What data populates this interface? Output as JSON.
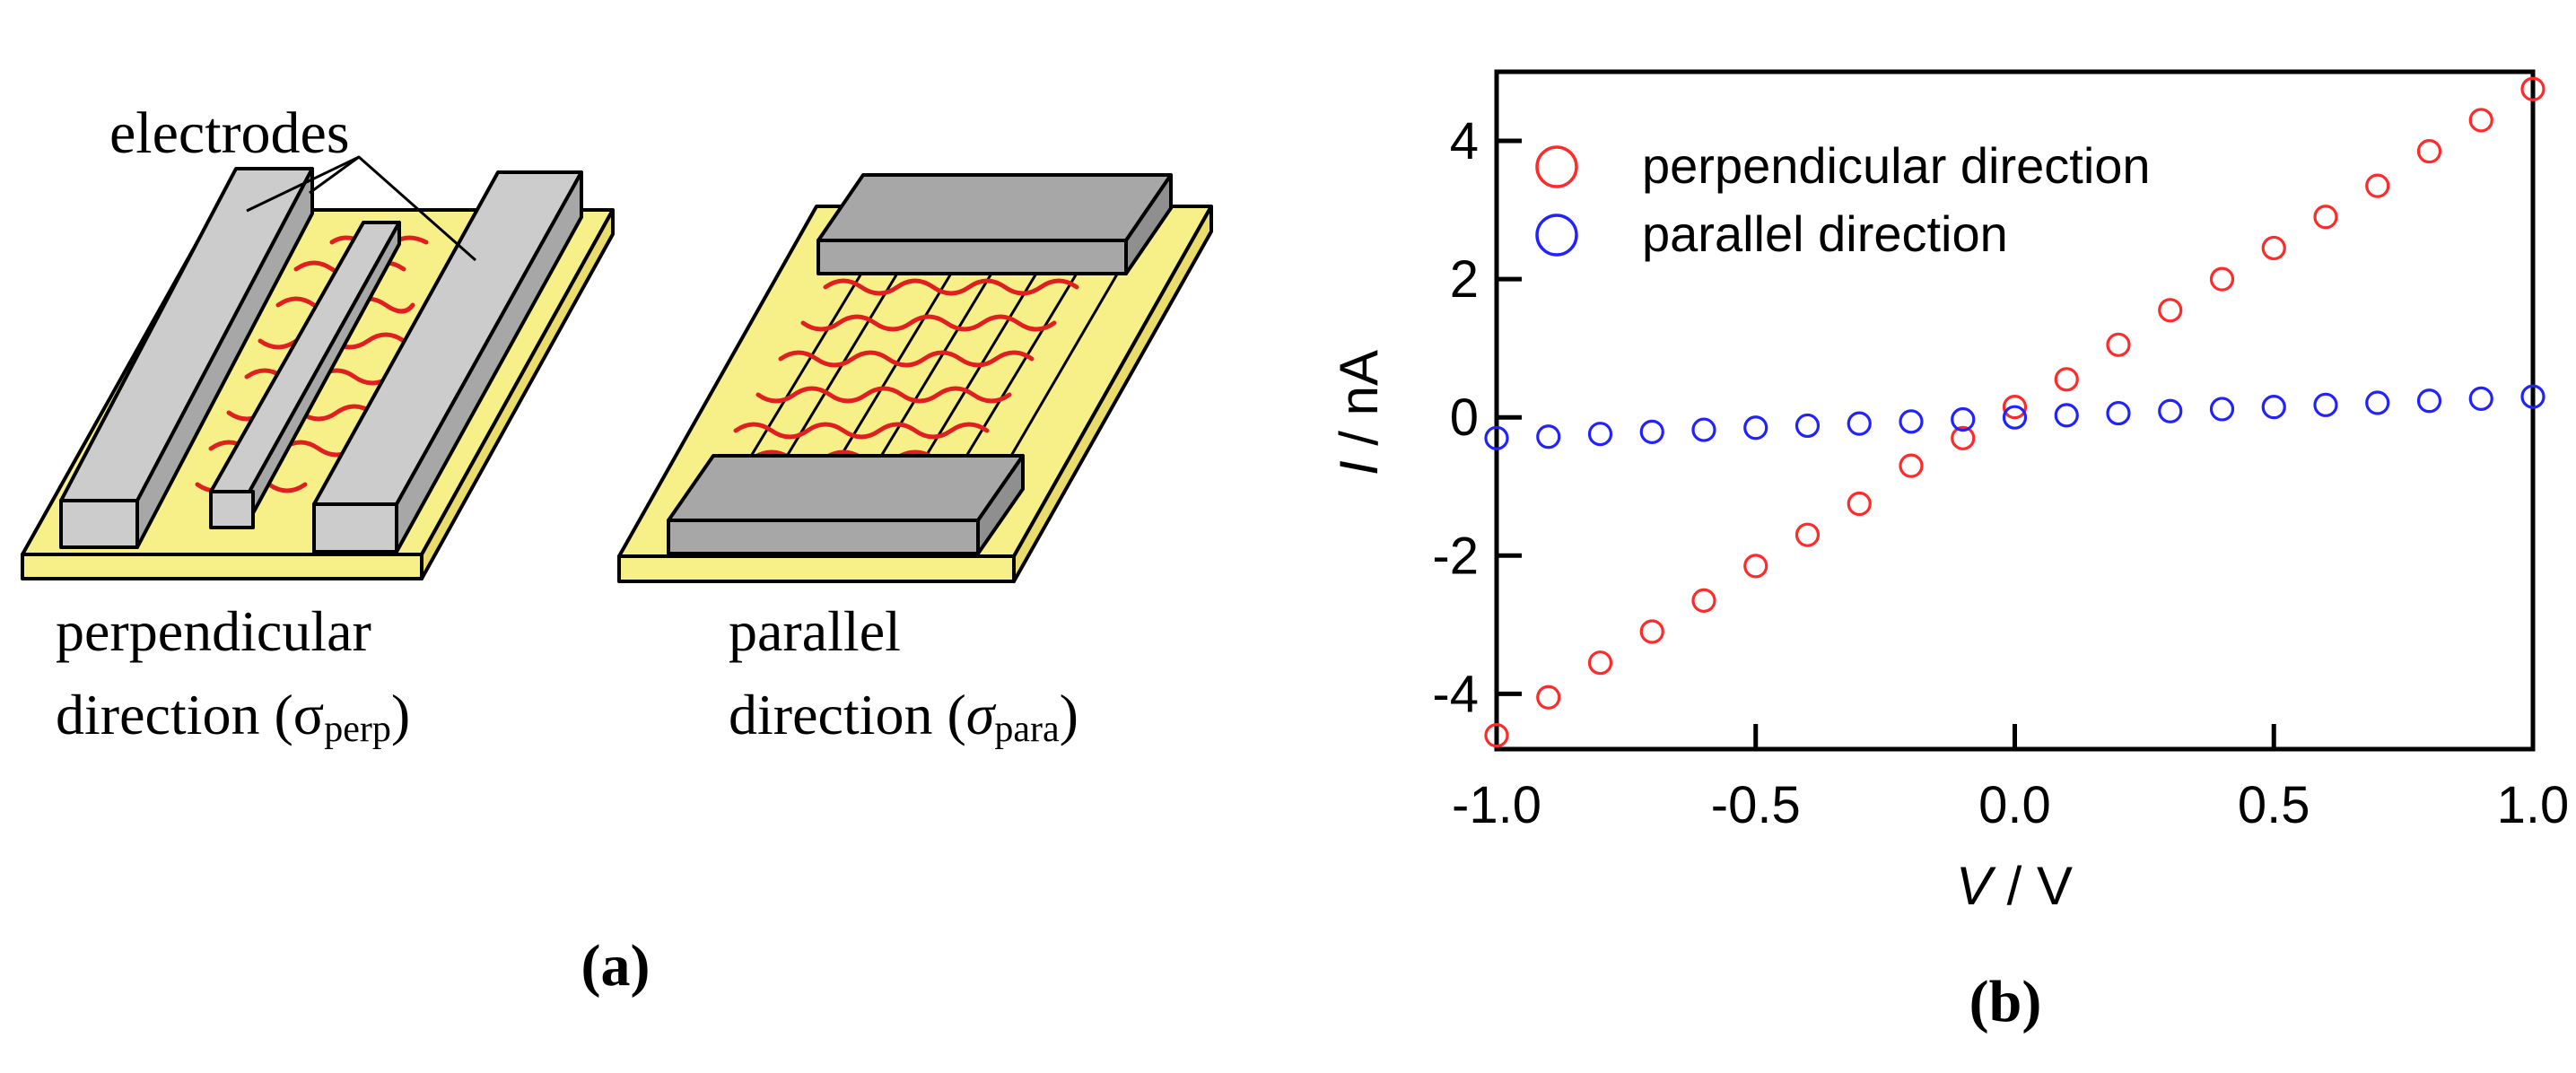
{
  "panel_a": {
    "label": "(a)",
    "electrodes_label": "electrodes",
    "perp": {
      "line1": "perpendicular",
      "line2": "direction (",
      "sigma": "σ",
      "subscript": "perp",
      "close": ")"
    },
    "para": {
      "line1": "parallel",
      "line2": "direction (",
      "sigma": "σ",
      "subscript": "para",
      "close": ")"
    }
  },
  "panel_b": {
    "label": "(b)"
  },
  "colors": {
    "substrate": "#f7ef88",
    "electrode_light": "#cccccc",
    "electrode_dark": "#a7a7a7",
    "fiber": "#e02020",
    "perp_series": "#ff2a2a",
    "para_series": "#2222ff"
  },
  "chart_data": {
    "type": "scatter",
    "title": "",
    "xlabel": {
      "var": "V",
      "unit": " / V"
    },
    "ylabel": {
      "var": "I",
      "unit": " / nA"
    },
    "xlim": [
      -1.0,
      1.0
    ],
    "ylim": [
      -4.8,
      5.0
    ],
    "xticks": [
      -1.0,
      -0.5,
      0.0,
      0.5,
      1.0
    ],
    "xtick_labels": [
      "-1.0",
      "-0.5",
      "0.0",
      "0.5",
      "1.0"
    ],
    "yticks": [
      -4,
      -2,
      0,
      2,
      4
    ],
    "ytick_labels": [
      "-4",
      "-2",
      "0",
      "2",
      "4"
    ],
    "grid": false,
    "legend": "top-left",
    "x": [
      -1.0,
      -0.9,
      -0.8,
      -0.7,
      -0.6,
      -0.5,
      -0.4,
      -0.3,
      -0.2,
      -0.1,
      0.0,
      0.1,
      0.2,
      0.3,
      0.4,
      0.5,
      0.6,
      0.7,
      0.8,
      0.9,
      1.0
    ],
    "series": [
      {
        "name": "perpendicular direction",
        "color": "#ff2a2a",
        "values": [
          -4.6,
          -4.05,
          -3.55,
          -3.1,
          -2.65,
          -2.15,
          -1.7,
          -1.25,
          -0.7,
          -0.3,
          0.15,
          0.55,
          1.05,
          1.55,
          2.0,
          2.45,
          2.9,
          3.35,
          3.85,
          4.3,
          4.75
        ]
      },
      {
        "name": "parallel direction",
        "color": "#2222ff",
        "values": [
          -0.3,
          -0.28,
          -0.24,
          -0.21,
          -0.18,
          -0.15,
          -0.12,
          -0.09,
          -0.06,
          -0.03,
          0.0,
          0.03,
          0.06,
          0.09,
          0.12,
          0.15,
          0.18,
          0.21,
          0.24,
          0.27,
          0.3
        ]
      }
    ]
  }
}
